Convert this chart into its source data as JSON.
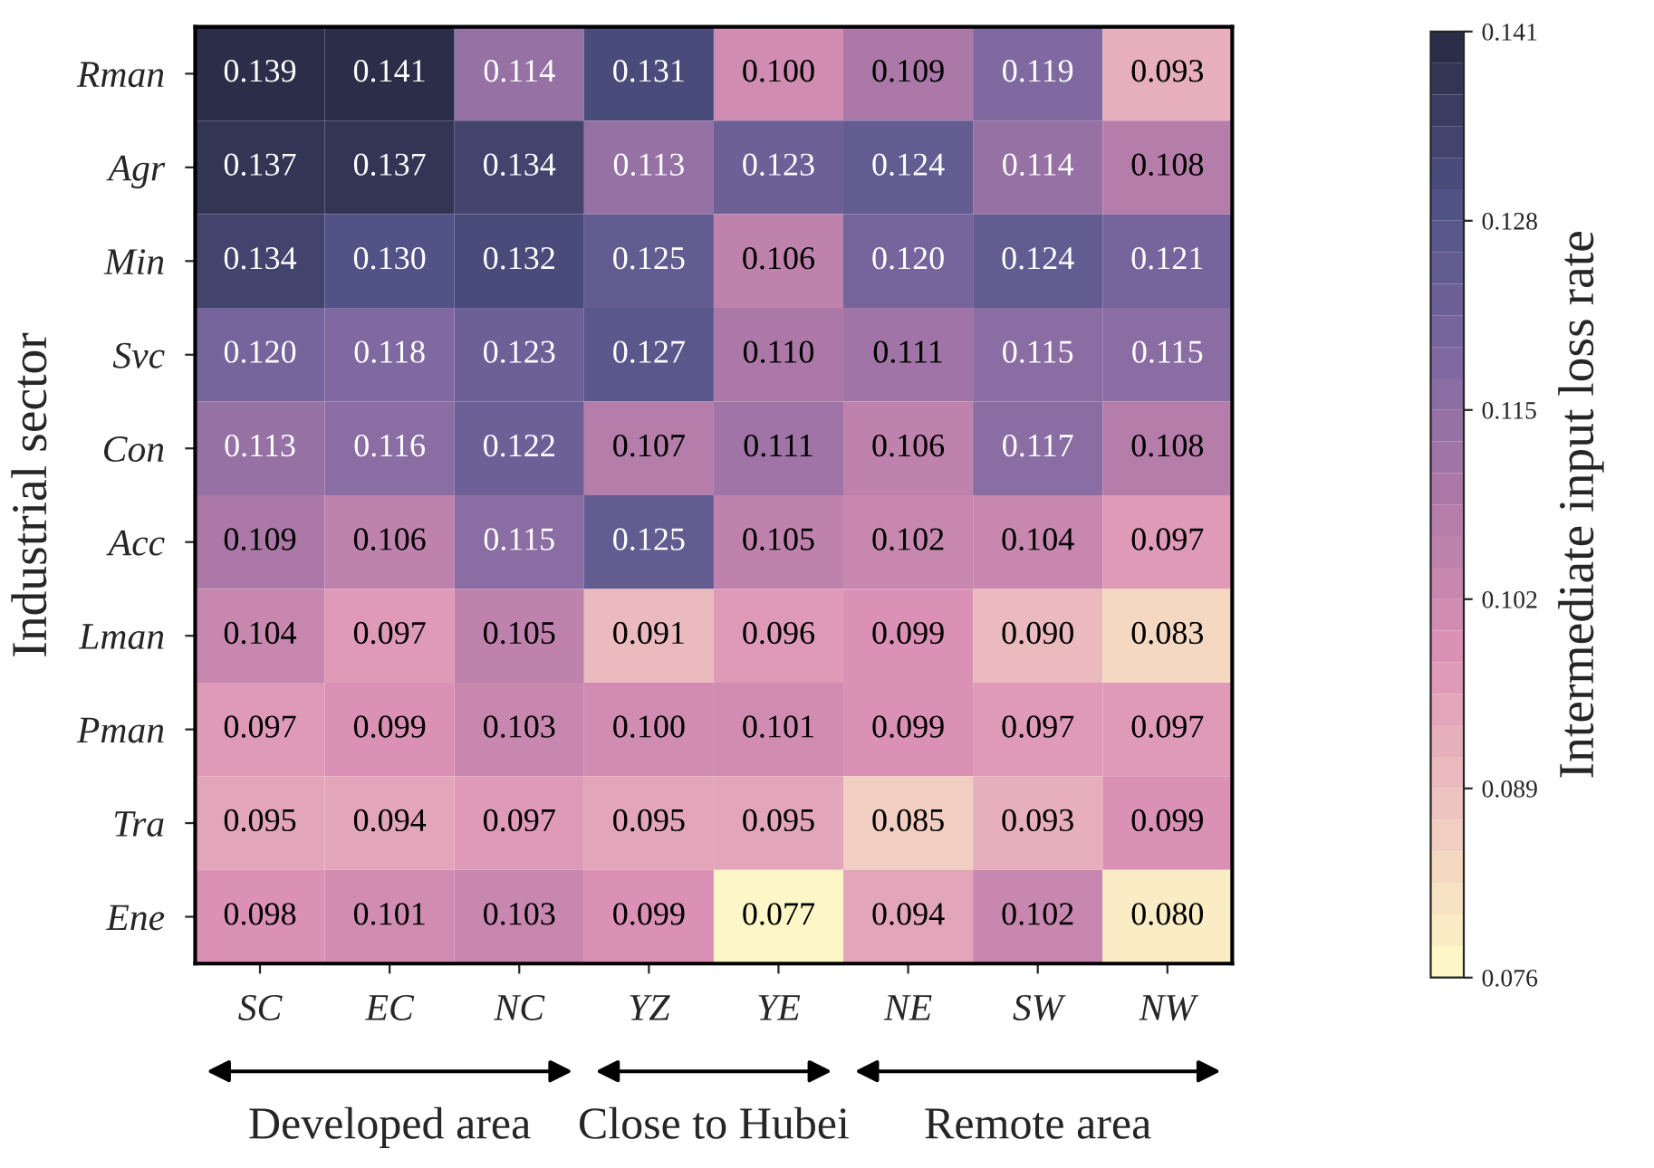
{
  "chart_data": {
    "type": "heatmap",
    "ylabel": "Industrial sector",
    "clabel": "Intermediate input loss rate",
    "categories": [
      "SC",
      "EC",
      "NC",
      "YZ",
      "YE",
      "NE",
      "SW",
      "NW"
    ],
    "y_categories": [
      "Rman",
      "Agr",
      "Min",
      "Svc",
      "Con",
      "Acc",
      "Lman",
      "Pman",
      "Tra",
      "Ene"
    ],
    "cells": [
      [
        0.139,
        0.141,
        0.114,
        0.131,
        0.1,
        0.109,
        0.119,
        0.093
      ],
      [
        0.137,
        0.137,
        0.134,
        0.113,
        0.123,
        0.124,
        0.114,
        0.108
      ],
      [
        0.134,
        0.13,
        0.132,
        0.125,
        0.106,
        0.12,
        0.124,
        0.121
      ],
      [
        0.12,
        0.118,
        0.123,
        0.127,
        0.11,
        0.111,
        0.115,
        0.115
      ],
      [
        0.113,
        0.116,
        0.122,
        0.107,
        0.111,
        0.106,
        0.117,
        0.108
      ],
      [
        0.109,
        0.106,
        0.115,
        0.125,
        0.105,
        0.102,
        0.104,
        0.097
      ],
      [
        0.104,
        0.097,
        0.105,
        0.091,
        0.096,
        0.099,
        0.09,
        0.083
      ],
      [
        0.097,
        0.099,
        0.103,
        0.1,
        0.101,
        0.099,
        0.097,
        0.097
      ],
      [
        0.095,
        0.094,
        0.097,
        0.095,
        0.095,
        0.085,
        0.093,
        0.099
      ],
      [
        0.098,
        0.101,
        0.103,
        0.099,
        0.077,
        0.094,
        0.102,
        0.08
      ]
    ],
    "cell_labels": [
      [
        "0.139",
        "0.141",
        "0.114",
        "0.131",
        "0.100",
        "0.109",
        "0.119",
        "0.093"
      ],
      [
        "0.137",
        "0.137",
        "0.134",
        "0.113",
        "0.123",
        "0.124",
        "0.114",
        "0.108"
      ],
      [
        "0.134",
        "0.130",
        "0.132",
        "0.125",
        "0.106",
        "0.120",
        "0.124",
        "0.121"
      ],
      [
        "0.120",
        "0.118",
        "0.123",
        "0.127",
        "0.110",
        "0.111",
        "0.115",
        "0.115"
      ],
      [
        "0.113",
        "0.116",
        "0.122",
        "0.107",
        "0.111",
        "0.106",
        "0.117",
        "0.108"
      ],
      [
        "0.109",
        "0.106",
        "0.115",
        "0.125",
        "0.105",
        "0.102",
        "0.104",
        "0.097"
      ],
      [
        "0.104",
        "0.097",
        "0.105",
        "0.091",
        "0.096",
        "0.099",
        "0.090",
        "0.083"
      ],
      [
        "0.097",
        "0.099",
        "0.103",
        "0.100",
        "0.101",
        "0.099",
        "0.097",
        "0.097"
      ],
      [
        "0.095",
        "0.094",
        "0.097",
        "0.095",
        "0.095",
        "0.085",
        "0.093",
        "0.099"
      ],
      [
        "0.098",
        "0.101",
        "0.103",
        "0.099",
        "0.077",
        "0.094",
        "0.102",
        "0.080"
      ]
    ],
    "data_labels": true,
    "clim": [
      0.076,
      0.141
    ],
    "cticks": [
      0.076,
      0.089,
      0.102,
      0.115,
      0.128,
      0.141
    ],
    "annotations": [
      "Developed area",
      "Close to Hubei",
      "Remote area"
    ]
  }
}
